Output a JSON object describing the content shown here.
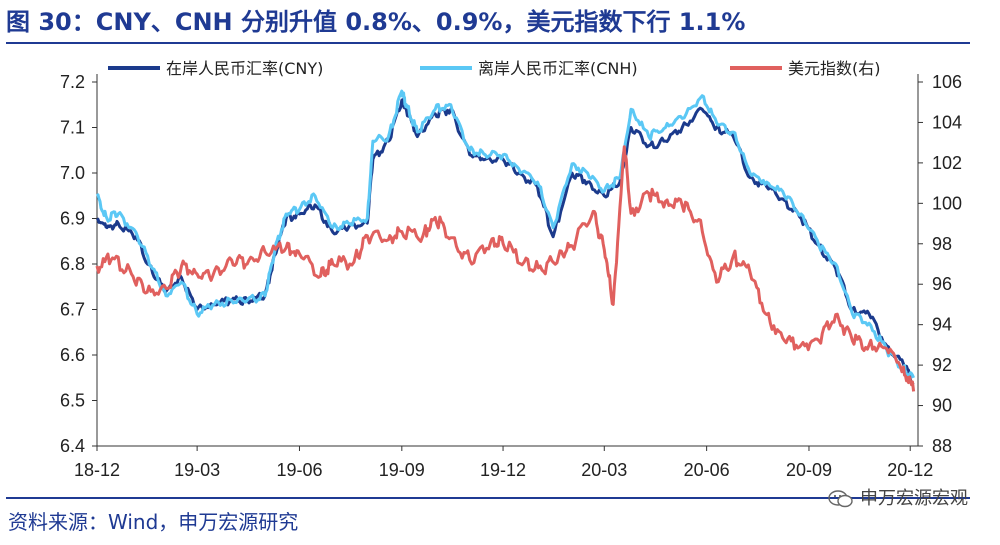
{
  "figure": {
    "title": "图 30：CNY、CNH 分别升值 0.8%、0.9%，美元指数下行 1.1%",
    "source": "资料来源：Wind，申万宏源研究",
    "watermark": "申万宏源宏观"
  },
  "colors": {
    "title": "#1f3a93",
    "cny": "#1b3a8c",
    "cnh": "#5bc8f5",
    "dxy": "#e0605e"
  },
  "chart_data": {
    "type": "line",
    "title": "",
    "x_ticks": [
      "18-12",
      "19-03",
      "19-06",
      "19-09",
      "19-12",
      "20-03",
      "20-06",
      "20-09",
      "20-12"
    ],
    "y_left": {
      "label": "",
      "ylim": [
        6.4,
        7.2
      ],
      "ticks": [
        "7.2",
        "7.1",
        "7.0",
        "6.9",
        "6.8",
        "6.7",
        "6.6",
        "6.5",
        "6.4"
      ]
    },
    "y_right": {
      "label": "",
      "ylim": [
        88,
        106
      ],
      "ticks": [
        "106",
        "104",
        "102",
        "100",
        "98",
        "96",
        "94",
        "92",
        "90",
        "88"
      ]
    },
    "legend_position": "top",
    "grid": false,
    "series": [
      {
        "name": "在岸人民币汇率(CNY)",
        "axis": "left",
        "points": [
          [
            "2018-12-01",
            6.9
          ],
          [
            "2018-12-10",
            6.88
          ],
          [
            "2018-12-20",
            6.89
          ],
          [
            "2019-01-05",
            6.86
          ],
          [
            "2019-01-20",
            6.78
          ],
          [
            "2019-02-01",
            6.74
          ],
          [
            "2019-02-15",
            6.77
          ],
          [
            "2019-03-01",
            6.7
          ],
          [
            "2019-03-15",
            6.71
          ],
          [
            "2019-04-01",
            6.72
          ],
          [
            "2019-04-15",
            6.72
          ],
          [
            "2019-05-01",
            6.73
          ],
          [
            "2019-05-10",
            6.82
          ],
          [
            "2019-05-20",
            6.9
          ],
          [
            "2019-06-01",
            6.91
          ],
          [
            "2019-06-15",
            6.93
          ],
          [
            "2019-07-01",
            6.87
          ],
          [
            "2019-07-15",
            6.88
          ],
          [
            "2019-08-01",
            6.89
          ],
          [
            "2019-08-06",
            7.03
          ],
          [
            "2019-08-20",
            7.07
          ],
          [
            "2019-09-01",
            7.16
          ],
          [
            "2019-09-05",
            7.14
          ],
          [
            "2019-09-15",
            7.08
          ],
          [
            "2019-10-01",
            7.13
          ],
          [
            "2019-10-15",
            7.14
          ],
          [
            "2019-11-01",
            7.04
          ],
          [
            "2019-11-15",
            7.03
          ],
          [
            "2019-12-01",
            7.03
          ],
          [
            "2019-12-15",
            7.0
          ],
          [
            "2020-01-01",
            6.97
          ],
          [
            "2020-01-15",
            6.86
          ],
          [
            "2020-02-01",
            7.0
          ],
          [
            "2020-02-15",
            6.98
          ],
          [
            "2020-03-01",
            6.95
          ],
          [
            "2020-03-15",
            6.98
          ],
          [
            "2020-03-25",
            7.1
          ],
          [
            "2020-04-10",
            7.06
          ],
          [
            "2020-04-25",
            7.07
          ],
          [
            "2020-05-10",
            7.1
          ],
          [
            "2020-05-28",
            7.14
          ],
          [
            "2020-06-10",
            7.1
          ],
          [
            "2020-06-25",
            7.08
          ],
          [
            "2020-07-10",
            6.99
          ],
          [
            "2020-07-25",
            6.97
          ],
          [
            "2020-08-10",
            6.94
          ],
          [
            "2020-08-25",
            6.9
          ],
          [
            "2020-09-10",
            6.84
          ],
          [
            "2020-09-25",
            6.79
          ],
          [
            "2020-10-10",
            6.7
          ],
          [
            "2020-10-25",
            6.69
          ],
          [
            "2020-11-10",
            6.62
          ],
          [
            "2020-11-25",
            6.58
          ],
          [
            "2020-12-04",
            6.54
          ]
        ]
      },
      {
        "name": "离岸人民币汇率(CNH)",
        "axis": "left",
        "points": [
          [
            "2018-12-01",
            6.95
          ],
          [
            "2018-12-10",
            6.9
          ],
          [
            "2018-12-20",
            6.91
          ],
          [
            "2019-01-05",
            6.87
          ],
          [
            "2019-01-20",
            6.79
          ],
          [
            "2019-02-01",
            6.73
          ],
          [
            "2019-02-15",
            6.76
          ],
          [
            "2019-03-01",
            6.69
          ],
          [
            "2019-03-15",
            6.71
          ],
          [
            "2019-04-01",
            6.72
          ],
          [
            "2019-04-15",
            6.72
          ],
          [
            "2019-05-01",
            6.73
          ],
          [
            "2019-05-10",
            6.83
          ],
          [
            "2019-05-20",
            6.91
          ],
          [
            "2019-06-01",
            6.92
          ],
          [
            "2019-06-15",
            6.95
          ],
          [
            "2019-07-01",
            6.88
          ],
          [
            "2019-07-15",
            6.89
          ],
          [
            "2019-08-01",
            6.9
          ],
          [
            "2019-08-06",
            7.07
          ],
          [
            "2019-08-20",
            7.08
          ],
          [
            "2019-09-01",
            7.18
          ],
          [
            "2019-09-05",
            7.15
          ],
          [
            "2019-09-15",
            7.09
          ],
          [
            "2019-10-01",
            7.14
          ],
          [
            "2019-10-15",
            7.15
          ],
          [
            "2019-11-01",
            7.05
          ],
          [
            "2019-11-15",
            7.04
          ],
          [
            "2019-12-01",
            7.04
          ],
          [
            "2019-12-15",
            7.01
          ],
          [
            "2020-01-01",
            6.98
          ],
          [
            "2020-01-15",
            6.88
          ],
          [
            "2020-02-01",
            7.02
          ],
          [
            "2020-02-15",
            7.0
          ],
          [
            "2020-03-01",
            6.96
          ],
          [
            "2020-03-15",
            6.99
          ],
          [
            "2020-03-25",
            7.14
          ],
          [
            "2020-04-10",
            7.08
          ],
          [
            "2020-04-25",
            7.1
          ],
          [
            "2020-05-10",
            7.12
          ],
          [
            "2020-05-28",
            7.17
          ],
          [
            "2020-06-10",
            7.11
          ],
          [
            "2020-06-25",
            7.09
          ],
          [
            "2020-07-10",
            7.0
          ],
          [
            "2020-07-25",
            6.98
          ],
          [
            "2020-08-10",
            6.95
          ],
          [
            "2020-08-25",
            6.91
          ],
          [
            "2020-09-10",
            6.84
          ],
          [
            "2020-09-25",
            6.8
          ],
          [
            "2020-10-10",
            6.69
          ],
          [
            "2020-10-25",
            6.67
          ],
          [
            "2020-11-10",
            6.61
          ],
          [
            "2020-11-25",
            6.57
          ],
          [
            "2020-12-04",
            6.55
          ]
        ]
      },
      {
        "name": "美元指数(右)",
        "axis": "right",
        "points": [
          [
            "2018-12-01",
            96.9
          ],
          [
            "2018-12-15",
            97.3
          ],
          [
            "2019-01-01",
            96.5
          ],
          [
            "2019-01-15",
            95.6
          ],
          [
            "2019-02-01",
            95.8
          ],
          [
            "2019-02-15",
            96.9
          ],
          [
            "2019-03-01",
            96.5
          ],
          [
            "2019-03-15",
            96.4
          ],
          [
            "2019-04-01",
            97.2
          ],
          [
            "2019-04-15",
            97.0
          ],
          [
            "2019-05-01",
            97.6
          ],
          [
            "2019-05-20",
            97.8
          ],
          [
            "2019-06-01",
            97.5
          ],
          [
            "2019-06-20",
            96.4
          ],
          [
            "2019-07-01",
            97.0
          ],
          [
            "2019-07-20",
            97.1
          ],
          [
            "2019-08-01",
            98.4
          ],
          [
            "2019-08-20",
            98.2
          ],
          [
            "2019-09-01",
            98.6
          ],
          [
            "2019-09-20",
            98.4
          ],
          [
            "2019-10-01",
            99.3
          ],
          [
            "2019-10-15",
            98.3
          ],
          [
            "2019-11-01",
            97.2
          ],
          [
            "2019-11-20",
            98.1
          ],
          [
            "2019-12-01",
            98.0
          ],
          [
            "2019-12-20",
            97.1
          ],
          [
            "2020-01-05",
            96.7
          ],
          [
            "2020-01-20",
            97.4
          ],
          [
            "2020-02-01",
            97.9
          ],
          [
            "2020-02-20",
            99.6
          ],
          [
            "2020-03-01",
            97.7
          ],
          [
            "2020-03-09",
            95.0
          ],
          [
            "2020-03-19",
            102.8
          ],
          [
            "2020-03-25",
            99.5
          ],
          [
            "2020-04-10",
            100.5
          ],
          [
            "2020-04-25",
            100.1
          ],
          [
            "2020-05-10",
            99.9
          ],
          [
            "2020-05-25",
            99.2
          ],
          [
            "2020-06-10",
            96.1
          ],
          [
            "2020-06-25",
            97.4
          ],
          [
            "2020-07-10",
            96.6
          ],
          [
            "2020-07-25",
            94.5
          ],
          [
            "2020-08-10",
            93.2
          ],
          [
            "2020-08-25",
            93.0
          ],
          [
            "2020-09-10",
            93.2
          ],
          [
            "2020-09-25",
            94.5
          ],
          [
            "2020-10-10",
            93.2
          ],
          [
            "2020-10-25",
            93.0
          ],
          [
            "2020-11-10",
            92.8
          ],
          [
            "2020-11-25",
            91.9
          ],
          [
            "2020-12-04",
            90.7
          ]
        ]
      }
    ]
  }
}
